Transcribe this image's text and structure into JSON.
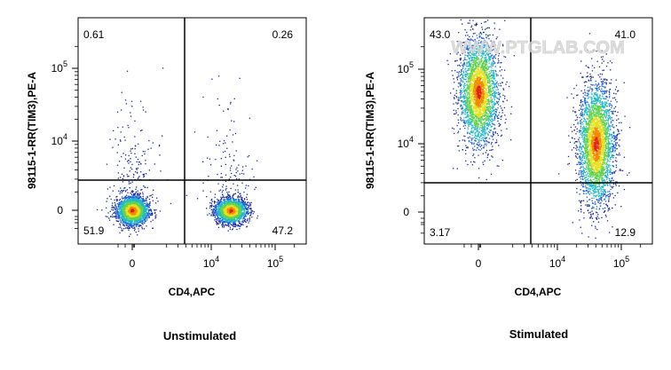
{
  "watermark": "WWW.PTGLAB.COM",
  "chart_data": [
    {
      "type": "scatter",
      "title": "Unstimulated",
      "xlabel": "CD4,APC",
      "ylabel": "98115-1-RR(TIM3),PE-A",
      "x_scale": "biexponential",
      "y_scale": "biexponential",
      "x_ticks": [
        {
          "value": 0,
          "label": "0"
        },
        {
          "value": 10000,
          "label": "10",
          "exp": "4"
        },
        {
          "value": 100000,
          "label": "10",
          "exp": "5"
        }
      ],
      "y_ticks": [
        {
          "value": 0,
          "label": "0"
        },
        {
          "value": 10000,
          "label": "10",
          "exp": "4"
        },
        {
          "value": 100000,
          "label": "10",
          "exp": "5"
        }
      ],
      "quadrant_gates": {
        "x": 3000,
        "y": 2500
      },
      "quadrants": {
        "upper_left": "0.61",
        "upper_right": "0.26",
        "lower_left": "51.9",
        "lower_right": "47.2"
      },
      "populations": [
        {
          "x_center": 0,
          "y_center": 0,
          "count": 2400
        },
        {
          "x_center": 20000,
          "y_center": 0,
          "count": 2200
        }
      ]
    },
    {
      "type": "scatter",
      "title": "Stimulated",
      "xlabel": "CD4,APC",
      "ylabel": "98115-1-RR(TIM3),PE-A",
      "x_scale": "biexponential",
      "y_scale": "biexponential",
      "x_ticks": [
        {
          "value": 0,
          "label": "0"
        },
        {
          "value": 10000,
          "label": "10",
          "exp": "4"
        },
        {
          "value": 100000,
          "label": "10",
          "exp": "5"
        }
      ],
      "y_ticks": [
        {
          "value": 0,
          "label": "0"
        },
        {
          "value": 10000,
          "label": "10",
          "exp": "4"
        },
        {
          "value": 100000,
          "label": "10",
          "exp": "5"
        }
      ],
      "quadrant_gates": {
        "x": 3000,
        "y": 2500
      },
      "quadrants": {
        "upper_left": "43.0",
        "upper_right": "41.0",
        "lower_left": "3.17",
        "lower_right": "12.9"
      },
      "populations": [
        {
          "x_center": 0,
          "y_center": 50000,
          "count": 3000
        },
        {
          "x_center": 40000,
          "y_center": 10000,
          "count": 3200
        }
      ]
    }
  ]
}
